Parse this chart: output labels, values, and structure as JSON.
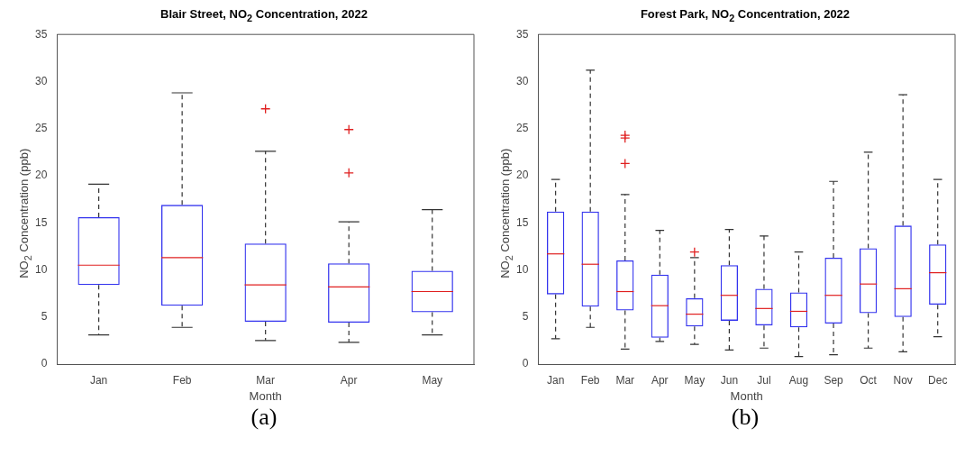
{
  "chart_data": [
    {
      "type": "box",
      "title": "Blair Street, NO$_{2}$ Concentration, 2022",
      "xlabel": "Month",
      "ylabel": "NO$_{2}$ Concentration (ppb)",
      "annotations": [
        "(a)"
      ],
      "categories": [
        "Jan",
        "Feb",
        "Mar",
        "Apr",
        "May"
      ],
      "ylim": [
        0,
        35
      ],
      "yticks": [
        0,
        5,
        10,
        15,
        20,
        25,
        30,
        35
      ],
      "series": [
        {
          "color": "#3333ee",
          "boxes": [
            {
              "low": 3.1,
              "q1": 8.4,
              "median": 10.5,
              "q3": 15.6,
              "high": 19.1
            },
            {
              "low": 3.9,
              "q1": 6.2,
              "median": 11.3,
              "q3": 16.9,
              "high": 28.8
            },
            {
              "low": 2.5,
              "q1": 4.5,
              "median": 8.4,
              "q3": 12.8,
              "high": 22.6,
              "outliers": [
                27.1
              ]
            },
            {
              "low": 2.3,
              "q1": 4.4,
              "median": 8.2,
              "q3": 10.7,
              "high": 15.1,
              "outliers": [
                24.9,
                20.3
              ]
            },
            {
              "low": 3.1,
              "q1": 5.5,
              "median": 7.7,
              "q3": 9.9,
              "high": 16.4
            }
          ]
        }
      ]
    },
    {
      "type": "box",
      "title": "Forest Park, NO$_{2}$ Concentration, 2022",
      "xlabel": "Month",
      "ylabel": "NO$_{2}$ Concentration (ppb)",
      "annotations": [
        "(b)"
      ],
      "categories": [
        "Jan",
        "Feb",
        "Mar",
        "Apr",
        "May",
        "Jun",
        "Jul",
        "Aug",
        "Sep",
        "Oct",
        "Nov",
        "Dec"
      ],
      "ylim": [
        0,
        35
      ],
      "yticks": [
        0,
        5,
        10,
        15,
        20,
        25,
        30,
        35
      ],
      "series": [
        {
          "color": "#3333ee",
          "boxes": [
            {
              "low": 2.7,
              "q1": 7.4,
              "median": 11.7,
              "q3": 16.2,
              "high": 19.6
            },
            {
              "low": 3.9,
              "q1": 6.1,
              "median": 10.6,
              "q3": 16.2,
              "high": 31.2
            },
            {
              "low": 1.6,
              "q1": 5.7,
              "median": 7.7,
              "q3": 11.0,
              "high": 18.0,
              "outliers": [
                24.3,
                24.0,
                21.3
              ]
            },
            {
              "low": 2.4,
              "q1": 2.8,
              "median": 6.2,
              "q3": 9.5,
              "high": 14.2
            },
            {
              "low": 2.1,
              "q1": 4.0,
              "median": 5.3,
              "q3": 7.0,
              "high": 11.3,
              "outliers": [
                11.9
              ]
            },
            {
              "low": 1.5,
              "q1": 4.6,
              "median": 7.3,
              "q3": 10.5,
              "high": 14.3
            },
            {
              "low": 1.7,
              "q1": 4.1,
              "median": 5.9,
              "q3": 8.0,
              "high": 13.6
            },
            {
              "low": 0.8,
              "q1": 3.9,
              "median": 5.6,
              "q3": 7.6,
              "high": 11.9
            },
            {
              "low": 1.0,
              "q1": 4.3,
              "median": 7.3,
              "q3": 11.3,
              "high": 19.4
            },
            {
              "low": 1.7,
              "q1": 5.4,
              "median": 8.5,
              "q3": 12.3,
              "high": 22.5
            },
            {
              "low": 1.3,
              "q1": 5.0,
              "median": 8.0,
              "q3": 14.7,
              "high": 28.6
            },
            {
              "low": 2.9,
              "q1": 6.3,
              "median": 9.7,
              "q3": 12.7,
              "high": 19.6
            }
          ]
        }
      ]
    }
  ]
}
